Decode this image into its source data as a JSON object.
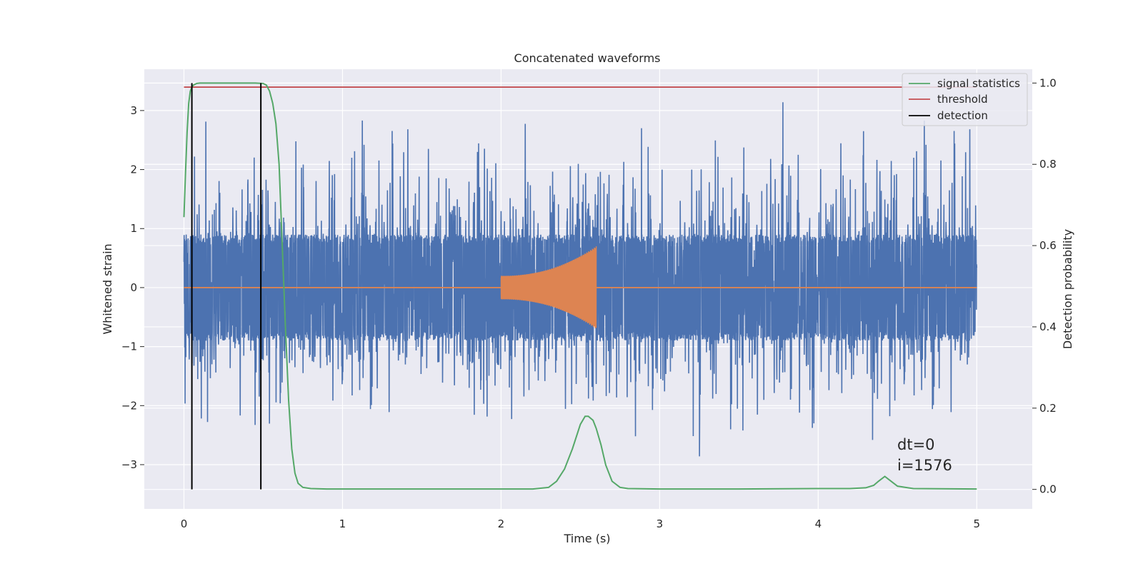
{
  "chart_data": {
    "type": "line",
    "title": "Concatenated waveforms",
    "xlabel": "Time (s)",
    "ylabel": "Whitened strain",
    "y2label": "Detection probability",
    "xlim": [
      -0.25,
      5.35
    ],
    "ylim": [
      -3.75,
      3.7
    ],
    "y2lim": [
      -0.048,
      1.034
    ],
    "x_ticks": [
      0,
      1,
      2,
      3,
      4,
      5
    ],
    "y_ticks": [
      -3,
      -2,
      -1,
      0,
      1,
      2,
      3
    ],
    "y2_ticks": [
      0.0,
      0.2,
      0.4,
      0.6,
      0.8,
      1.0
    ],
    "x_tick_labels": [
      "0",
      "1",
      "2",
      "3",
      "4",
      "5"
    ],
    "y_tick_labels": [
      "−3",
      "−2",
      "−1",
      "0",
      "1",
      "2",
      "3"
    ],
    "y2_tick_labels": [
      "0.0",
      "0.2",
      "0.4",
      "0.6",
      "0.8",
      "1.0"
    ],
    "grid": true,
    "legend_position": "top-right",
    "colors": {
      "strain": "#4c72b0",
      "injection": "#dd8452",
      "signal_statistics": "#55a868",
      "threshold": "#c44e52",
      "detection": "#000000",
      "plot_bg": "#eaeaf2",
      "grid": "#ffffff"
    },
    "series": [
      {
        "name": "",
        "axis": "left",
        "description_kind": "whitened strain noise",
        "x_range": [
          0,
          5
        ],
        "envelope_core": [
          -0.75,
          0.75
        ],
        "peak_abs": 3.4
      },
      {
        "name": "",
        "axis": "left",
        "description_kind": "injected chirp",
        "x_range": [
          2.0,
          2.6
        ],
        "amplitude_start": 0.2,
        "amplitude_end": 0.7
      },
      {
        "name": "signal statistics",
        "axis": "right",
        "x": [
          0.0,
          0.01,
          0.02,
          0.03,
          0.04,
          0.05,
          0.06,
          0.08,
          0.1,
          0.15,
          0.2,
          0.3,
          0.4,
          0.45,
          0.5,
          0.52,
          0.54,
          0.56,
          0.58,
          0.6,
          0.62,
          0.64,
          0.66,
          0.68,
          0.7,
          0.72,
          0.75,
          0.8,
          0.9,
          1.0,
          1.5,
          2.0,
          2.2,
          2.3,
          2.35,
          2.4,
          2.45,
          2.5,
          2.53,
          2.55,
          2.58,
          2.6,
          2.63,
          2.66,
          2.7,
          2.75,
          2.8,
          3.0,
          3.5,
          4.0,
          4.2,
          4.3,
          4.35,
          4.38,
          4.42,
          4.46,
          4.5,
          4.6,
          5.0
        ],
        "values": [
          0.67,
          0.78,
          0.88,
          0.95,
          0.98,
          0.99,
          0.995,
          0.999,
          1.0,
          1.0,
          1.0,
          1.0,
          1.0,
          1.0,
          0.999,
          0.995,
          0.98,
          0.95,
          0.9,
          0.8,
          0.6,
          0.4,
          0.22,
          0.1,
          0.04,
          0.015,
          0.005,
          0.002,
          0.001,
          0.001,
          0.001,
          0.001,
          0.001,
          0.005,
          0.02,
          0.05,
          0.1,
          0.16,
          0.18,
          0.18,
          0.17,
          0.15,
          0.11,
          0.06,
          0.02,
          0.005,
          0.002,
          0.001,
          0.001,
          0.002,
          0.002,
          0.004,
          0.01,
          0.02,
          0.032,
          0.02,
          0.008,
          0.002,
          0.001
        ]
      },
      {
        "name": "threshold",
        "axis": "right",
        "x": [
          0.0,
          5.0
        ],
        "values": [
          0.99,
          0.99
        ]
      },
      {
        "name": "detection",
        "axis": "right",
        "x": [
          0.05,
          0.485
        ],
        "values": [
          0.99,
          0.99
        ],
        "from": 0.0,
        "to": 1.0
      }
    ],
    "legend": [
      "signal statistics",
      "threshold",
      "detection"
    ],
    "annotations": [
      "dt=0",
      "i=1576"
    ]
  }
}
